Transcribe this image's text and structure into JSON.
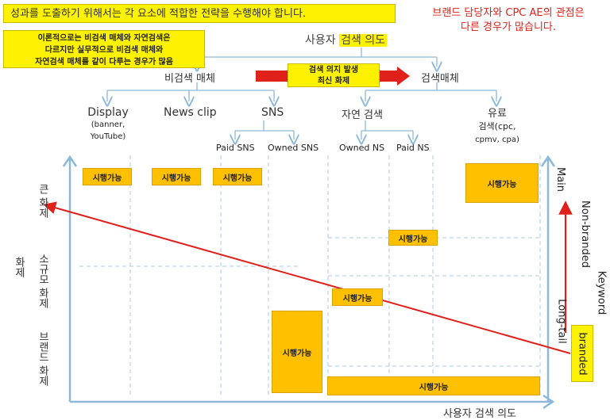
{
  "banner": {
    "text": "성과를 도출하기 위해서는 각 요소에 적합한 전략을 수행해야 합니다."
  },
  "top_note": {
    "line1": "브랜드 담당자와 CPC AE의 관점은",
    "line2": "다른 경우가 많습니다."
  },
  "left_note": {
    "line1": "이론적으로는 비검색 매체와 자연검색은",
    "line2": "다르지만 실무적으로 비검색 매체와",
    "line3": "자연검색 매체를 같이 다루는 경우가 많음"
  },
  "intent": {
    "prefix": "사용자",
    "highlight": "검색 의도"
  },
  "branches": {
    "non_search": "비검색 매체",
    "search": "검색매체"
  },
  "middle_box": {
    "line1": "검색 의지 발생",
    "line2": "최신 화제"
  },
  "categories": {
    "display": {
      "title": "Display",
      "sub1": "(banner,",
      "sub2": "YouTube)"
    },
    "news": "News clip",
    "sns": "SNS",
    "organic": "자연 검색",
    "paid": {
      "title": "유료",
      "sub1": "검색(cpc,",
      "sub2": "cpmv, cpa)"
    }
  },
  "subcategories": {
    "paid_sns": "Paid SNS",
    "owned_sns": "Owned SNS",
    "owned_ns": "Owned NS",
    "paid_ns": "Paid NS"
  },
  "tag_label": "시행가능",
  "y_axis": {
    "title": "화제",
    "big": "큰 화제",
    "small": "소규모 화제",
    "brand": "브랜드 화제"
  },
  "x_axis": {
    "label": "사용자 검색 의도"
  },
  "right_axis": {
    "main": "Main",
    "longtail": "Long-tail",
    "nonbranded": "Non-branded",
    "keyword": "Keyword",
    "branded": "branded"
  },
  "colors": {
    "accent_yellow": "#fff200",
    "tag_orange": "#ffc000",
    "axis_blue": "#8db8d8",
    "arrow_red": "#e0201a"
  }
}
